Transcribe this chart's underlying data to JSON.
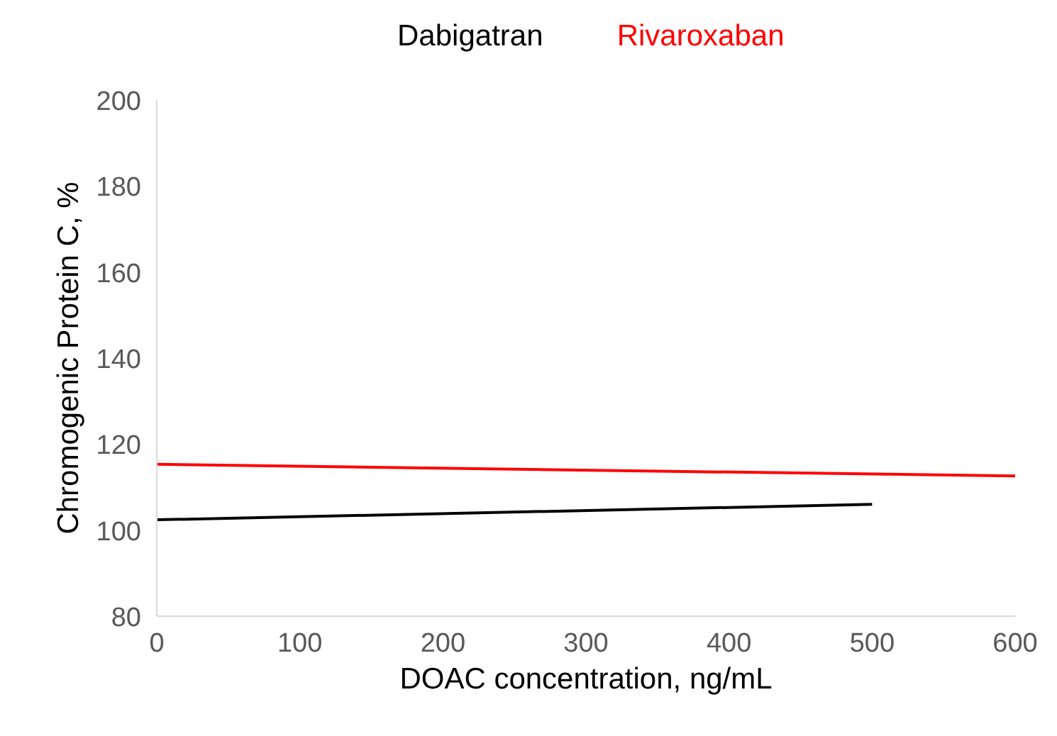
{
  "chart_data": {
    "type": "line",
    "xlabel": "DOAC concentration, ng/mL",
    "ylabel": "Chromogenic Protein C, %",
    "series": [
      {
        "name": "Dabigatran",
        "color": "#000000",
        "x": [
          0,
          500
        ],
        "values": [
          102.4,
          106.0
        ]
      },
      {
        "name": "Rivaroxaban",
        "color": "#ff0000",
        "x": [
          0,
          600
        ],
        "values": [
          115.3,
          112.6
        ]
      }
    ],
    "xlim": [
      0,
      600
    ],
    "xticks": [
      0,
      100,
      200,
      300,
      400,
      500,
      600
    ],
    "ylim": [
      80,
      200
    ],
    "yticks": [
      80,
      100,
      120,
      140,
      160,
      180,
      200
    ],
    "grid": false,
    "marker": "none",
    "line_style": "solid"
  }
}
